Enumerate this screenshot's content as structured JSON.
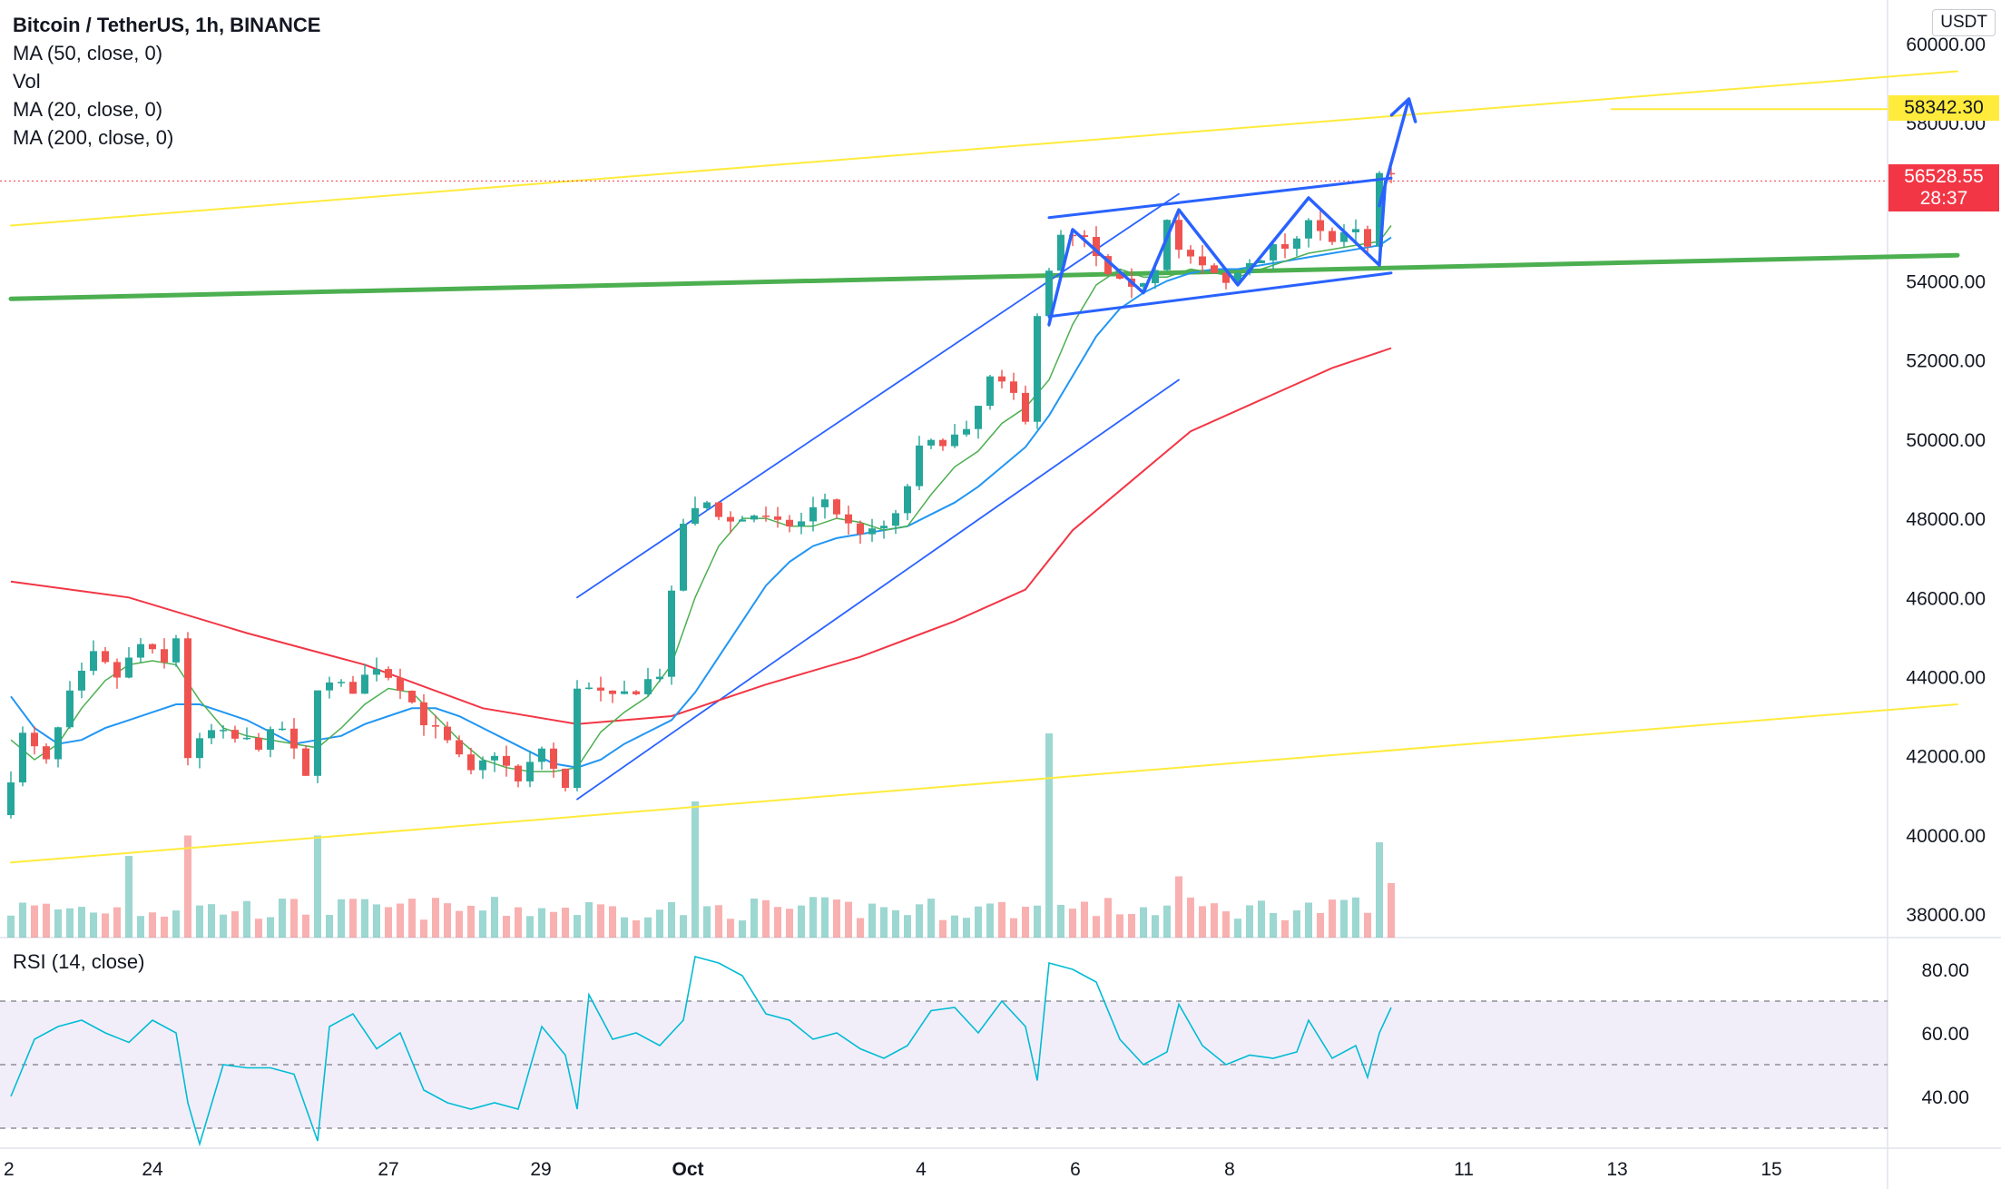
{
  "legend": {
    "title": "Bitcoin / TetherUS, 1h, BINANCE",
    "indicators": [
      "MA (50, close, 0)",
      "Vol",
      "MA (20, close, 0)",
      "MA (200, close, 0)"
    ],
    "rsi": "RSI (14, close)"
  },
  "currency_label": "USDT",
  "price_badges": {
    "target": "58342.30",
    "last": "56528.55",
    "countdown": "28:37"
  },
  "colors": {
    "up": "#26a69a",
    "down": "#ef5350",
    "ma20": "#4caf50",
    "ma50": "#2196f3",
    "ma200": "#f23645",
    "trend_yellow": "#ffeb3b",
    "support_green": "#4caf50",
    "channel_blue": "#2962ff",
    "rsi": "#00bcd4",
    "target_badge": "#ffeb3b",
    "last_badge": "#f23645"
  },
  "chart_data": [
    {
      "type": "candlestick",
      "title": "Bitcoin / TetherUS, 1h, BINANCE",
      "y_axis": {
        "range": [
          37500,
          60500
        ],
        "ticks": [
          "60000.00",
          "58000.00",
          "56000.00",
          "54000.00",
          "52000.00",
          "50000.00",
          "48000.00",
          "46000.00",
          "44000.00",
          "42000.00",
          "40000.00",
          "38000.00"
        ]
      },
      "x_axis": {
        "ticks": [
          "2",
          "24",
          "27",
          "29",
          "Oct",
          "4",
          "6",
          "8",
          "11",
          "13",
          "15"
        ]
      },
      "price_path": [
        [
          0,
          40500
        ],
        [
          2,
          42500
        ],
        [
          4,
          41800
        ],
        [
          6,
          43500
        ],
        [
          8,
          44500
        ],
        [
          10,
          44000
        ],
        [
          12,
          44800
        ],
        [
          14,
          44300
        ],
        [
          15,
          45000
        ],
        [
          16,
          42000
        ],
        [
          18,
          42600
        ],
        [
          20,
          42400
        ],
        [
          22,
          42300
        ],
        [
          24,
          42700
        ],
        [
          26,
          41400
        ],
        [
          27,
          43800
        ],
        [
          30,
          43700
        ],
        [
          32,
          44300
        ],
        [
          34,
          43800
        ],
        [
          36,
          42900
        ],
        [
          38,
          42300
        ],
        [
          40,
          41500
        ],
        [
          42,
          42100
        ],
        [
          44,
          41300
        ],
        [
          46,
          42200
        ],
        [
          48,
          41100
        ],
        [
          49,
          43800
        ],
        [
          52,
          43400
        ],
        [
          54,
          43700
        ],
        [
          56,
          44100
        ],
        [
          58,
          47900
        ],
        [
          60,
          48400
        ],
        [
          62,
          47900
        ],
        [
          64,
          48100
        ],
        [
          66,
          47800
        ],
        [
          68,
          47900
        ],
        [
          70,
          48500
        ],
        [
          72,
          47800
        ],
        [
          74,
          47600
        ],
        [
          76,
          48000
        ],
        [
          78,
          49700
        ],
        [
          80,
          50000
        ],
        [
          82,
          50100
        ],
        [
          84,
          51500
        ],
        [
          86,
          51100
        ],
        [
          87,
          50600
        ],
        [
          88,
          53200
        ],
        [
          90,
          55100
        ],
        [
          92,
          55000
        ],
        [
          94,
          54100
        ],
        [
          96,
          53700
        ],
        [
          98,
          54400
        ],
        [
          99,
          55700
        ],
        [
          100,
          54800
        ],
        [
          102,
          54300
        ],
        [
          104,
          53900
        ],
        [
          106,
          54500
        ],
        [
          108,
          54800
        ],
        [
          110,
          54900
        ],
        [
          111,
          55700
        ],
        [
          113,
          55000
        ],
        [
          115,
          55200
        ],
        [
          116,
          54800
        ],
        [
          117,
          56600
        ]
      ],
      "bar_count": 118,
      "ma20_path": [
        [
          0,
          42400
        ],
        [
          2,
          41900
        ],
        [
          4,
          42300
        ],
        [
          6,
          43200
        ],
        [
          8,
          43900
        ],
        [
          10,
          44300
        ],
        [
          12,
          44400
        ],
        [
          14,
          44300
        ],
        [
          16,
          43400
        ],
        [
          18,
          42700
        ],
        [
          20,
          42500
        ],
        [
          22,
          42400
        ],
        [
          24,
          42300
        ],
        [
          26,
          42200
        ],
        [
          28,
          42700
        ],
        [
          30,
          43300
        ],
        [
          32,
          43700
        ],
        [
          34,
          43600
        ],
        [
          36,
          43000
        ],
        [
          38,
          42400
        ],
        [
          40,
          41900
        ],
        [
          42,
          41700
        ],
        [
          44,
          41600
        ],
        [
          46,
          41600
        ],
        [
          48,
          41700
        ],
        [
          50,
          42600
        ],
        [
          52,
          43100
        ],
        [
          54,
          43500
        ],
        [
          56,
          44300
        ],
        [
          58,
          46000
        ],
        [
          60,
          47300
        ],
        [
          62,
          48000
        ],
        [
          64,
          48000
        ],
        [
          66,
          47800
        ],
        [
          68,
          47800
        ],
        [
          70,
          48000
        ],
        [
          72,
          47900
        ],
        [
          74,
          47700
        ],
        [
          76,
          47800
        ],
        [
          78,
          48600
        ],
        [
          80,
          49300
        ],
        [
          82,
          49700
        ],
        [
          84,
          50400
        ],
        [
          86,
          50800
        ],
        [
          88,
          51500
        ],
        [
          90,
          52900
        ],
        [
          92,
          53900
        ],
        [
          94,
          54300
        ],
        [
          96,
          54100
        ],
        [
          98,
          54100
        ],
        [
          100,
          54300
        ],
        [
          102,
          54200
        ],
        [
          104,
          54100
        ],
        [
          106,
          54300
        ],
        [
          108,
          54500
        ],
        [
          110,
          54700
        ],
        [
          112,
          54800
        ],
        [
          114,
          54900
        ],
        [
          116,
          55000
        ],
        [
          117,
          55400
        ]
      ],
      "ma50_path": [
        [
          0,
          43500
        ],
        [
          2,
          42700
        ],
        [
          4,
          42300
        ],
        [
          6,
          42400
        ],
        [
          8,
          42700
        ],
        [
          10,
          42900
        ],
        [
          12,
          43100
        ],
        [
          14,
          43300
        ],
        [
          16,
          43300
        ],
        [
          18,
          43100
        ],
        [
          20,
          42900
        ],
        [
          22,
          42600
        ],
        [
          24,
          42300
        ],
        [
          26,
          42400
        ],
        [
          28,
          42500
        ],
        [
          30,
          42800
        ],
        [
          32,
          43000
        ],
        [
          34,
          43200
        ],
        [
          36,
          43200
        ],
        [
          38,
          43000
        ],
        [
          40,
          42700
        ],
        [
          42,
          42400
        ],
        [
          44,
          42100
        ],
        [
          46,
          41800
        ],
        [
          48,
          41700
        ],
        [
          50,
          41900
        ],
        [
          52,
          42300
        ],
        [
          54,
          42600
        ],
        [
          56,
          42900
        ],
        [
          58,
          43600
        ],
        [
          60,
          44500
        ],
        [
          62,
          45400
        ],
        [
          64,
          46300
        ],
        [
          66,
          46900
        ],
        [
          68,
          47300
        ],
        [
          70,
          47500
        ],
        [
          72,
          47600
        ],
        [
          74,
          47700
        ],
        [
          76,
          47800
        ],
        [
          78,
          48100
        ],
        [
          80,
          48400
        ],
        [
          82,
          48800
        ],
        [
          84,
          49300
        ],
        [
          86,
          49800
        ],
        [
          88,
          50600
        ],
        [
          90,
          51600
        ],
        [
          92,
          52600
        ],
        [
          94,
          53300
        ],
        [
          96,
          53700
        ],
        [
          98,
          54000
        ],
        [
          100,
          54200
        ],
        [
          102,
          54300
        ],
        [
          104,
          54300
        ],
        [
          106,
          54400
        ],
        [
          108,
          54500
        ],
        [
          110,
          54600
        ],
        [
          112,
          54700
        ],
        [
          114,
          54800
        ],
        [
          116,
          54900
        ],
        [
          117,
          55100
        ]
      ],
      "ma200_path": [
        [
          0,
          46400
        ],
        [
          10,
          46000
        ],
        [
          20,
          45100
        ],
        [
          30,
          44300
        ],
        [
          40,
          43200
        ],
        [
          48,
          42800
        ],
        [
          56,
          43000
        ],
        [
          64,
          43800
        ],
        [
          72,
          44500
        ],
        [
          80,
          45400
        ],
        [
          86,
          46200
        ],
        [
          90,
          47700
        ],
        [
          96,
          49200
        ],
        [
          100,
          50200
        ],
        [
          106,
          51000
        ],
        [
          112,
          51800
        ],
        [
          117,
          52300
        ]
      ],
      "drawings": {
        "upper_yellow_trend": [
          [
            0,
            55400
          ],
          [
            165,
            59300
          ]
        ],
        "lower_yellow_trend": [
          [
            0,
            39300
          ],
          [
            165,
            43300
          ]
        ],
        "green_support": [
          [
            0,
            53550
          ],
          [
            165,
            54650
          ]
        ],
        "target_line_level": 58342.3,
        "last_price_level": 56528.55,
        "rising_channel_upper": [
          [
            48,
            46000
          ],
          [
            99,
            56200
          ]
        ],
        "rising_channel_lower": [
          [
            48,
            40900
          ],
          [
            99,
            51500
          ]
        ],
        "flag_upper": [
          [
            88,
            55600
          ],
          [
            117,
            56600
          ]
        ],
        "flag_lower": [
          [
            88,
            53100
          ],
          [
            117,
            54200
          ]
        ],
        "zigzag": [
          [
            88,
            52900
          ],
          [
            90,
            55300
          ],
          [
            96,
            53700
          ],
          [
            99,
            55800
          ],
          [
            104,
            53900
          ],
          [
            110,
            56100
          ],
          [
            116,
            54400
          ],
          [
            116.5,
            56500
          ]
        ],
        "arrow": [
          [
            116,
            55900
          ],
          [
            118.5,
            58600
          ]
        ]
      },
      "volume": {
        "spikes": [
          [
            10,
            1.2
          ],
          [
            15,
            1.5
          ],
          [
            26,
            1.5
          ],
          [
            58,
            2.0
          ],
          [
            88,
            3.0
          ],
          [
            99,
            0.9
          ],
          [
            116,
            1.4
          ],
          [
            117,
            0.8
          ]
        ]
      }
    },
    {
      "type": "line",
      "title": "RSI (14, close)",
      "y_axis": {
        "range": [
          22,
          87
        ],
        "ticks": [
          "80.00",
          "60.00",
          "40.00"
        ]
      },
      "bands": [
        70,
        50,
        30
      ],
      "path": [
        [
          0,
          40
        ],
        [
          2,
          58
        ],
        [
          4,
          62
        ],
        [
          6,
          64
        ],
        [
          8,
          60
        ],
        [
          10,
          57
        ],
        [
          12,
          64
        ],
        [
          14,
          60
        ],
        [
          15,
          38
        ],
        [
          16,
          25
        ],
        [
          18,
          50
        ],
        [
          20,
          49
        ],
        [
          22,
          49
        ],
        [
          24,
          47
        ],
        [
          26,
          26
        ],
        [
          27,
          62
        ],
        [
          29,
          66
        ],
        [
          31,
          55
        ],
        [
          33,
          60
        ],
        [
          35,
          42
        ],
        [
          37,
          38
        ],
        [
          39,
          36
        ],
        [
          41,
          38
        ],
        [
          43,
          36
        ],
        [
          45,
          62
        ],
        [
          47,
          53
        ],
        [
          48,
          36
        ],
        [
          49,
          72
        ],
        [
          51,
          58
        ],
        [
          53,
          60
        ],
        [
          55,
          56
        ],
        [
          57,
          64
        ],
        [
          58,
          84
        ],
        [
          60,
          82
        ],
        [
          62,
          78
        ],
        [
          64,
          66
        ],
        [
          66,
          64
        ],
        [
          68,
          58
        ],
        [
          70,
          60
        ],
        [
          72,
          55
        ],
        [
          74,
          52
        ],
        [
          76,
          56
        ],
        [
          78,
          67
        ],
        [
          80,
          68
        ],
        [
          82,
          60
        ],
        [
          84,
          70
        ],
        [
          86,
          62
        ],
        [
          87,
          45
        ],
        [
          88,
          82
        ],
        [
          90,
          80
        ],
        [
          92,
          76
        ],
        [
          94,
          58
        ],
        [
          96,
          50
        ],
        [
          98,
          54
        ],
        [
          99,
          69
        ],
        [
          101,
          56
        ],
        [
          103,
          50
        ],
        [
          105,
          53
        ],
        [
          107,
          52
        ],
        [
          109,
          54
        ],
        [
          110,
          64
        ],
        [
          112,
          52
        ],
        [
          114,
          56
        ],
        [
          115,
          46
        ],
        [
          116,
          60
        ],
        [
          117,
          68
        ]
      ]
    }
  ]
}
